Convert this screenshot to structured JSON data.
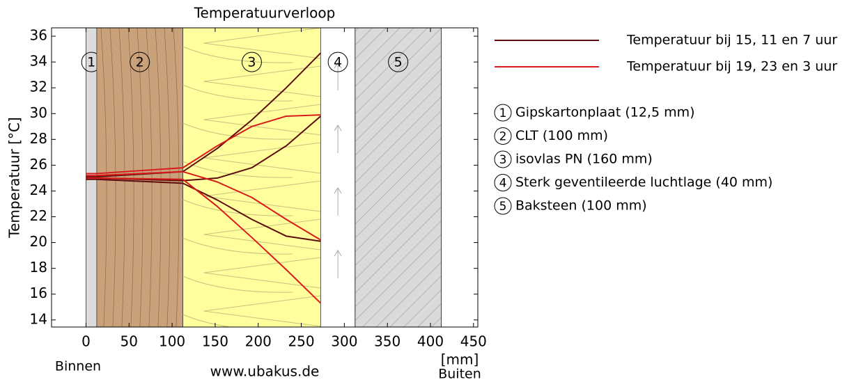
{
  "chart_data": {
    "type": "line",
    "title": "Temperatuurverloop",
    "y_label": "Temperatuur [°C]",
    "x_label": "[mm]",
    "annotations": {
      "inside": "Binnen",
      "outside": "Buiten",
      "source": "www.ubakus.de"
    },
    "xlim": [
      -40,
      455
    ],
    "ylim": [
      13.45,
      36.65
    ],
    "xticks": [
      0,
      50,
      100,
      150,
      200,
      250,
      300,
      350,
      400,
      450
    ],
    "yticks": [
      14,
      16,
      18,
      20,
      22,
      24,
      26,
      28,
      30,
      32,
      34,
      36
    ],
    "layers": [
      {
        "number": "1",
        "label": "Gipskartonplaat (12,5 mm)",
        "x0": 0,
        "x1": 12.5,
        "color": "#dcdcdc"
      },
      {
        "number": "2",
        "label": "CLT (100 mm)",
        "x0": 12.5,
        "x1": 112.5,
        "color": "#c9a27c"
      },
      {
        "number": "3",
        "label": "isovlas PN (160 mm)",
        "x0": 112.5,
        "x1": 272.5,
        "color": "#ffff9e"
      },
      {
        "number": "4",
        "label": "Sterk geventileerde luchtlage (40 mm)",
        "x0": 272.5,
        "x1": 312.5,
        "color": "#ffffff"
      },
      {
        "number": "5",
        "label": "Baksteen (100 mm)",
        "x0": 312.5,
        "x1": 412.5,
        "color": "#dadada"
      }
    ],
    "x": [
      0,
      12.5,
      112.5,
      152.5,
      192.5,
      232.5,
      272.5
    ],
    "series": [
      {
        "name": "Temperatuur bij 15, 11 en 7 uur",
        "color": "#5e0b0b",
        "lines": [
          [
            25.1,
            25.1,
            25.5,
            27.3,
            29.5,
            32.0,
            34.7
          ],
          [
            25.0,
            25.0,
            24.8,
            25.0,
            25.8,
            27.5,
            29.8
          ],
          [
            24.9,
            24.9,
            24.6,
            23.3,
            21.8,
            20.5,
            20.1
          ]
        ]
      },
      {
        "name": "Temperatuur bij 19, 23 en 3 uur",
        "color": "#d91a1a",
        "lines": [
          [
            25.35,
            25.35,
            25.8,
            27.5,
            29.0,
            29.8,
            29.9
          ],
          [
            25.2,
            25.2,
            25.5,
            24.7,
            23.5,
            21.8,
            20.2
          ],
          [
            25.0,
            25.0,
            24.9,
            22.8,
            20.4,
            17.9,
            15.3
          ]
        ]
      }
    ]
  }
}
